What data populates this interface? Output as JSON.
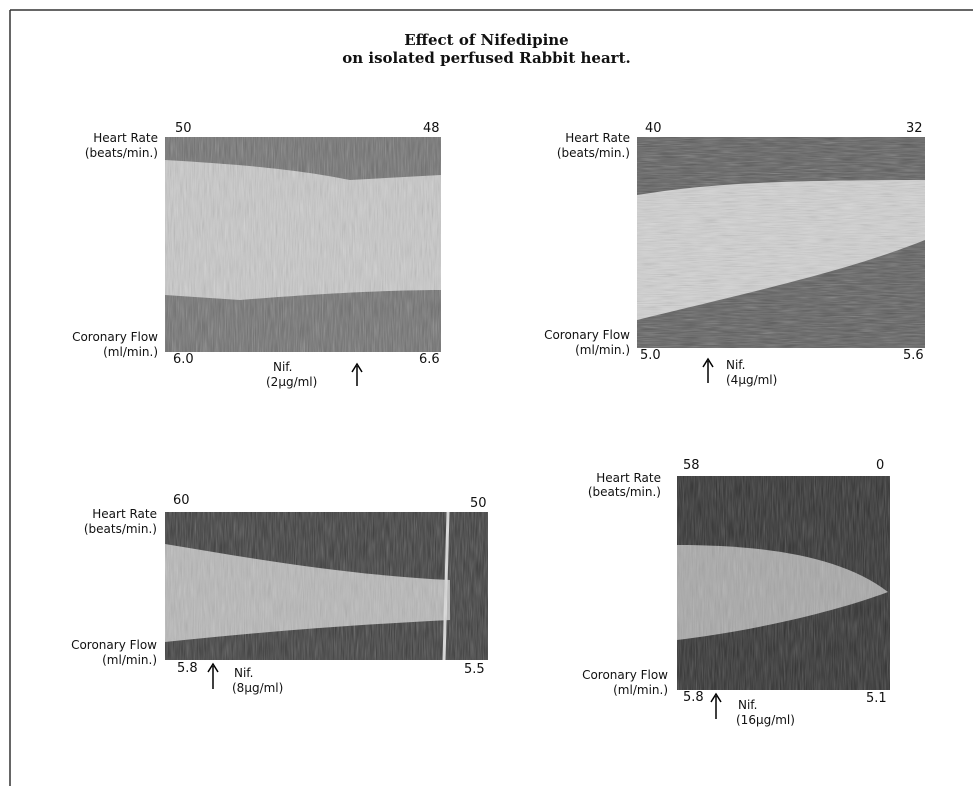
{
  "header": {
    "title": [
      "Effect of Nifedipine",
      "on isolated perfused Rabbit heart."
    ]
  },
  "panels": [
    {
      "heart_rate_label": "Heart Rate",
      "heart_rate_unit": "(beats/min.)",
      "heart_rate_start": "50",
      "heart_rate_end": "48",
      "coronary_flow_label": "Coronary Flow",
      "coronary_flow_unit": "(ml/min.)",
      "coronary_flow_start": "6.0",
      "coronary_flow_end": "6.6",
      "drug": "Nif.",
      "dose": "(2μg/ml)"
    },
    {
      "heart_rate_label": "Heart Rate",
      "heart_rate_unit": "(beats/min.)",
      "heart_rate_start": "40",
      "heart_rate_end": "32",
      "coronary_flow_label": "Coronary Flow",
      "coronary_flow_unit": "(ml/min.)",
      "coronary_flow_start": "5.0",
      "coronary_flow_end": "5.6",
      "drug": "Nif.",
      "dose": "(4μg/ml)"
    },
    {
      "heart_rate_label": "Heart Rate",
      "heart_rate_unit": "(beats/min.)",
      "heart_rate_start": "60",
      "heart_rate_end": "50",
      "coronary_flow_label": "Coronary Flow",
      "coronary_flow_unit": "(ml/min.)",
      "coronary_flow_start": "5.8",
      "coronary_flow_end": "5.5",
      "drug": "Nif.",
      "dose": "(8μg/ml)"
    },
    {
      "heart_rate_label": "Heart Rate",
      "heart_rate_unit": "(beats/min.)",
      "heart_rate_start": "58",
      "heart_rate_end": "0",
      "coronary_flow_label": "Coronary Flow",
      "coronary_flow_unit": "(ml/min.)",
      "coronary_flow_start": "5.8",
      "coronary_flow_end": "5.1",
      "drug": "Nif.",
      "dose": "(16μg/ml)"
    }
  ]
}
